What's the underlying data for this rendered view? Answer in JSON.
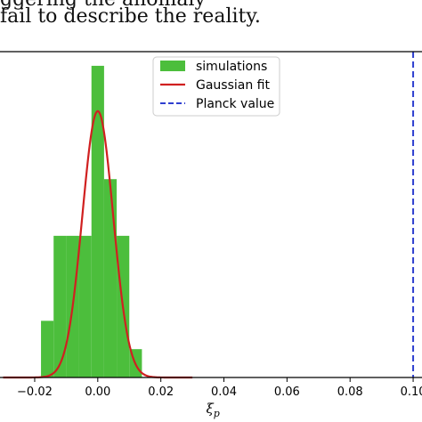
{
  "caption": {
    "line1": "ggering the anomaly",
    "line2": "fail to describe the reality."
  },
  "chart_data": {
    "type": "bar",
    "xlabel": "ξ_p",
    "xlim": [
      -0.031,
      0.1045
    ],
    "ylim": [
      0,
      11.5
    ],
    "x_ticks": [
      -0.02,
      0.0,
      0.02,
      0.04,
      0.06,
      0.08,
      0.1
    ],
    "x_tick_labels": [
      "−0.02",
      "0.00",
      "0.02",
      "0.04",
      "0.06",
      "0.08",
      "0.10"
    ],
    "histogram": {
      "name": "simulations",
      "color": "#4cbe3c",
      "bin_edges": [
        -0.018,
        -0.014,
        -0.01,
        -0.006,
        -0.002,
        0.002,
        0.006,
        0.01,
        0.014
      ],
      "counts": [
        2,
        5,
        5,
        5,
        11,
        7,
        5,
        1
      ]
    },
    "gaussian_fit": {
      "name": "Gaussian fit",
      "color": "#d02020",
      "mean": 0.0,
      "sigma": 0.0049,
      "peak": 9.4,
      "x_range": [
        -0.03,
        0.03
      ]
    },
    "planck_value": {
      "name": "Planck value",
      "color": "#2f3fd0",
      "x": 0.1
    },
    "legend": {
      "position": "top-right",
      "entries": [
        "simulations",
        "Gaussian fit",
        "Planck value"
      ]
    },
    "grid": false
  }
}
